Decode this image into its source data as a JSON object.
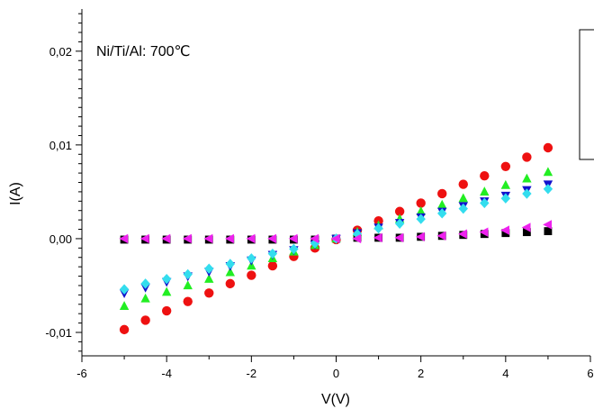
{
  "chart_data": {
    "type": "scatter",
    "annotation": "Ni/Ti/Al: 700℃",
    "xlabel": "V(V)",
    "ylabel": "I(A)",
    "xlim": [
      -6,
      6
    ],
    "ylim": [
      -0.0125,
      0.0245
    ],
    "x_ticks": [
      -6,
      -4,
      -2,
      0,
      2,
      4,
      6
    ],
    "x_tick_labels": [
      "-6",
      "-4",
      "-2",
      "0",
      "2",
      "4",
      "6"
    ],
    "y_ticks": [
      -0.01,
      0,
      0.01,
      0.02
    ],
    "y_tick_labels": [
      "-0,01",
      "0,00",
      "0,01",
      "0,02"
    ],
    "grid": false,
    "legend": "top-right (empty box)",
    "x": [
      -5,
      -4.5,
      -4,
      -3.5,
      -3,
      -2.5,
      -2,
      -1.5,
      -1,
      -0.5,
      0,
      0.5,
      1,
      1.5,
      2,
      2.5,
      3,
      3.5,
      4,
      4.5,
      5
    ],
    "series": [
      {
        "marker": "square",
        "color": "#000000",
        "values": [
          -0.0001,
          -0.0001,
          -0.0001,
          -0.0001,
          -0.0001,
          -0.0001,
          -0.0001,
          -0.0001,
          -0.0001,
          -0.0001,
          0,
          0.0001,
          0.0001,
          0.0001,
          0.0002,
          0.0003,
          0.0004,
          0.0005,
          0.0006,
          0.0007,
          0.0008
        ]
      },
      {
        "marker": "circle",
        "color": "#ee1111",
        "values": [
          -0.0097,
          -0.0087,
          -0.0077,
          -0.0067,
          -0.0058,
          -0.0048,
          -0.0039,
          -0.0029,
          -0.0019,
          -0.001,
          -0.0001,
          0.0009,
          0.0019,
          0.0029,
          0.0038,
          0.0048,
          0.0058,
          0.0067,
          0.0077,
          0.0087,
          0.0097
        ]
      },
      {
        "marker": "triangle-up",
        "color": "#22ee22",
        "values": [
          -0.0072,
          -0.0064,
          -0.0057,
          -0.005,
          -0.0043,
          -0.0036,
          -0.0029,
          -0.0021,
          -0.0014,
          -0.0007,
          0,
          0.0007,
          0.0014,
          0.0021,
          0.0029,
          0.0036,
          0.0043,
          0.005,
          0.0057,
          0.0064,
          0.0071
        ]
      },
      {
        "marker": "triangle-down",
        "color": "#1111cc",
        "values": [
          -0.0058,
          -0.0052,
          -0.0046,
          -0.004,
          -0.0035,
          -0.0029,
          -0.0023,
          -0.0017,
          -0.0012,
          -0.0006,
          0,
          0.0006,
          0.0012,
          0.0017,
          0.0023,
          0.0029,
          0.0035,
          0.004,
          0.0046,
          0.0052,
          0.0058
        ]
      },
      {
        "marker": "diamond",
        "color": "#33ddee",
        "values": [
          -0.0054,
          -0.0048,
          -0.0043,
          -0.0038,
          -0.0032,
          -0.0027,
          -0.0021,
          -0.0016,
          -0.0011,
          -0.0005,
          0,
          0.0005,
          0.0011,
          0.0016,
          0.0021,
          0.0027,
          0.0032,
          0.0038,
          0.0043,
          0.0048,
          0.0053
        ]
      },
      {
        "marker": "triangle-left",
        "color": "#ee22ee",
        "values": [
          0,
          0,
          0,
          0,
          0,
          0,
          0,
          0,
          0,
          0,
          0,
          0,
          0.0001,
          0.0001,
          0.0002,
          0.0003,
          0.0005,
          0.0007,
          0.0009,
          0.0012,
          0.0015
        ]
      }
    ]
  }
}
